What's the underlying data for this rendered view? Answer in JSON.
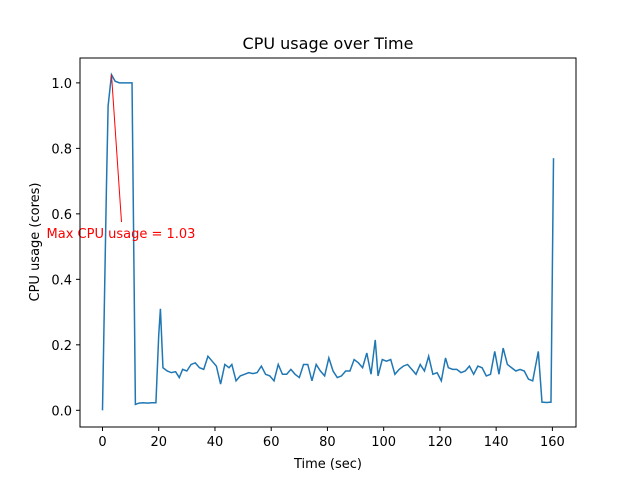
{
  "chart_data": {
    "type": "line",
    "title": "CPU usage over Time",
    "x_label": "Time (sec)",
    "y_label": "CPU usage (cores)",
    "annotation": "Max CPU usage = 1.03",
    "annotation_color": "#ff0000",
    "x": [
      0,
      1.4,
      2,
      3.2,
      4.5,
      6,
      7.5,
      9.2,
      10.5,
      11.7,
      13,
      14.5,
      16,
      17.5,
      19,
      20,
      20.6,
      21.5,
      23,
      24.5,
      26,
      27.3,
      28.5,
      30,
      31.5,
      33,
      34.5,
      36,
      37.5,
      39,
      40.5,
      42,
      43.5,
      45,
      46,
      47.5,
      49,
      50.5,
      52,
      53.5,
      55,
      56.5,
      58,
      59.5,
      61,
      62.5,
      64,
      65.5,
      67,
      68.5,
      70,
      71.5,
      73,
      74.5,
      76,
      77.5,
      79,
      80.5,
      82,
      83.5,
      85,
      86.5,
      88,
      89.5,
      91,
      92.5,
      94,
      95.5,
      97,
      98,
      99.5,
      101,
      102.5,
      104,
      105.5,
      107,
      108.5,
      110,
      111.5,
      113,
      114.5,
      116,
      117.5,
      119,
      120.5,
      122,
      123,
      124.5,
      126,
      127.5,
      129,
      130.5,
      132,
      133.5,
      135,
      136.5,
      138,
      139.5,
      141,
      142.5,
      144,
      145.5,
      147,
      148.5,
      150,
      151.5,
      153,
      155,
      156.3,
      158,
      159.5,
      160.4
    ],
    "series": [
      {
        "name": "CPU usage",
        "color": "#1f77b4",
        "values": [
          0,
          0.68,
          0.93,
          1.025,
          1.005,
          1.0,
          1.0,
          1.0,
          1.0,
          0.018,
          0.022,
          0.023,
          0.022,
          0.023,
          0.023,
          0.23,
          0.31,
          0.13,
          0.12,
          0.115,
          0.118,
          0.1,
          0.125,
          0.12,
          0.14,
          0.145,
          0.13,
          0.125,
          0.165,
          0.15,
          0.135,
          0.08,
          0.14,
          0.13,
          0.14,
          0.09,
          0.105,
          0.11,
          0.115,
          0.112,
          0.115,
          0.135,
          0.11,
          0.105,
          0.09,
          0.14,
          0.11,
          0.11,
          0.125,
          0.11,
          0.1,
          0.14,
          0.14,
          0.09,
          0.14,
          0.12,
          0.105,
          0.16,
          0.12,
          0.1,
          0.105,
          0.12,
          0.12,
          0.155,
          0.145,
          0.13,
          0.175,
          0.11,
          0.215,
          0.105,
          0.155,
          0.15,
          0.155,
          0.11,
          0.125,
          0.135,
          0.14,
          0.125,
          0.11,
          0.14,
          0.12,
          0.165,
          0.11,
          0.115,
          0.09,
          0.16,
          0.13,
          0.125,
          0.125,
          0.115,
          0.12,
          0.135,
          0.11,
          0.135,
          0.13,
          0.105,
          0.11,
          0.18,
          0.11,
          0.19,
          0.14,
          0.13,
          0.12,
          0.125,
          0.12,
          0.095,
          0.09,
          0.18,
          0.025,
          0.024,
          0.025,
          0.77
        ]
      }
    ],
    "xlim": [
      -8,
      168.4
    ],
    "xticks": [
      0,
      20,
      40,
      60,
      80,
      100,
      120,
      140,
      160
    ],
    "ylim": [
      -0.051,
      1.076
    ],
    "yticks": [
      {
        "value": 0,
        "label": "0.0"
      },
      0.2,
      0.4,
      0.6,
      0.8,
      {
        "value": 1,
        "label": "1.0"
      }
    ],
    "grid": false
  }
}
